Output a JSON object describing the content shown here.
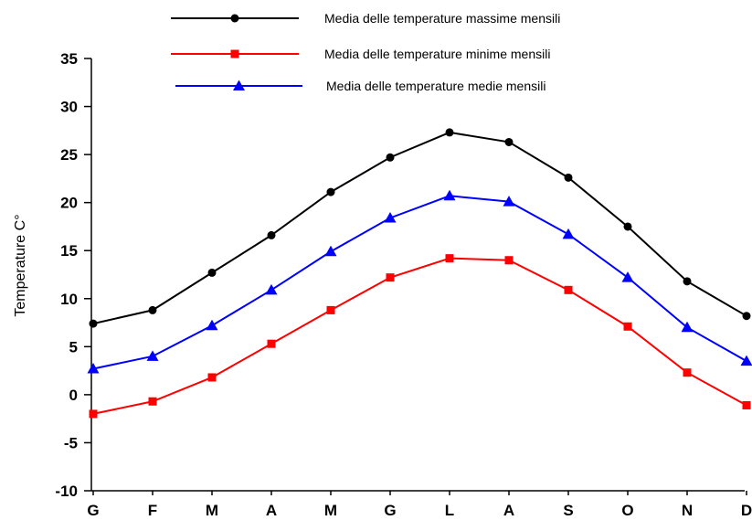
{
  "chart_data": {
    "type": "line",
    "title": "",
    "xlabel": "",
    "ylabel": "Temperature C°",
    "ylim": [
      -10,
      35
    ],
    "yticks": [
      -10,
      -5,
      0,
      5,
      10,
      15,
      20,
      25,
      30,
      35
    ],
    "categories": [
      "G",
      "F",
      "M",
      "A",
      "M",
      "G",
      "L",
      "A",
      "S",
      "O",
      "N",
      "D"
    ],
    "grid": false,
    "legend_position": "top",
    "series": [
      {
        "name": "Media delle temperature massime mensili",
        "color": "#000000",
        "marker": "circle",
        "values": [
          7.4,
          8.8,
          12.7,
          16.6,
          21.1,
          24.7,
          27.3,
          26.3,
          22.6,
          17.5,
          11.8,
          8.2
        ]
      },
      {
        "name": "Media delle temperature minime mensili",
        "color": "#ff0000",
        "marker": "square",
        "values": [
          -2.0,
          -0.7,
          1.8,
          5.3,
          8.8,
          12.2,
          14.2,
          14.0,
          10.9,
          7.1,
          2.3,
          -1.1
        ]
      },
      {
        "name": "Media delle temperature medie mensili",
        "color": "#0000ff",
        "marker": "triangle",
        "values": [
          2.7,
          4.0,
          7.2,
          10.9,
          14.9,
          18.4,
          20.7,
          20.1,
          16.7,
          12.2,
          7.0,
          3.5
        ]
      }
    ]
  }
}
